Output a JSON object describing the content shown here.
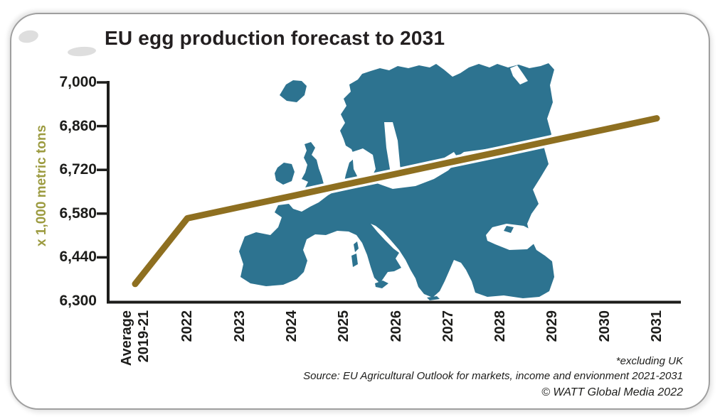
{
  "title": "EU egg production forecast to 2031",
  "footer": {
    "footnote": "*excluding UK",
    "source": "Source: EU Agricultural Outlook for markets, income and envionment 2021-2031",
    "copyright": "© WATT Global Media 2022"
  },
  "colors": {
    "line": "#8e6f20",
    "map": "#2d7390",
    "axis": "#1d1d1b",
    "y_axis_title": "#9c9b40",
    "title_text": "#231f20"
  },
  "chart_data": {
    "type": "line",
    "title": "EU egg production forecast to 2031",
    "xlabel": "",
    "ylabel": "x 1,000 metric tons",
    "ylim": [
      6300,
      7000
    ],
    "grid": false,
    "legend": false,
    "background_image": "europe-map-silhouette",
    "yticks": [
      {
        "label": "7,000",
        "value": 7000
      },
      {
        "label": "6,860",
        "value": 6860
      },
      {
        "label": "6,720",
        "value": 6720
      },
      {
        "label": "6,580",
        "value": 6580
      },
      {
        "label": "6,440",
        "value": 6440
      },
      {
        "label": "6,300",
        "value": 6300
      }
    ],
    "categories": [
      {
        "label": "Average 2019-21",
        "lines": [
          "Average",
          "2019-21"
        ]
      },
      {
        "label": "2022",
        "lines": [
          "2022"
        ]
      },
      {
        "label": "2023",
        "lines": [
          "2023"
        ]
      },
      {
        "label": "2024",
        "lines": [
          "2024"
        ]
      },
      {
        "label": "2025",
        "lines": [
          "2025"
        ]
      },
      {
        "label": "2026",
        "lines": [
          "2026"
        ]
      },
      {
        "label": "2027",
        "lines": [
          "2027"
        ]
      },
      {
        "label": "2028",
        "lines": [
          "2028"
        ]
      },
      {
        "label": "2029",
        "lines": [
          "2029"
        ]
      },
      {
        "label": "2030",
        "lines": [
          "2030"
        ]
      },
      {
        "label": "2031",
        "lines": [
          "2031"
        ]
      }
    ],
    "series": [
      {
        "name": "EU egg production (x 1,000 metric tons)",
        "color": "#8e6f20",
        "values": [
          6355,
          6565,
          6601,
          6636,
          6672,
          6707,
          6743,
          6778,
          6814,
          6849,
          6885
        ]
      }
    ]
  }
}
